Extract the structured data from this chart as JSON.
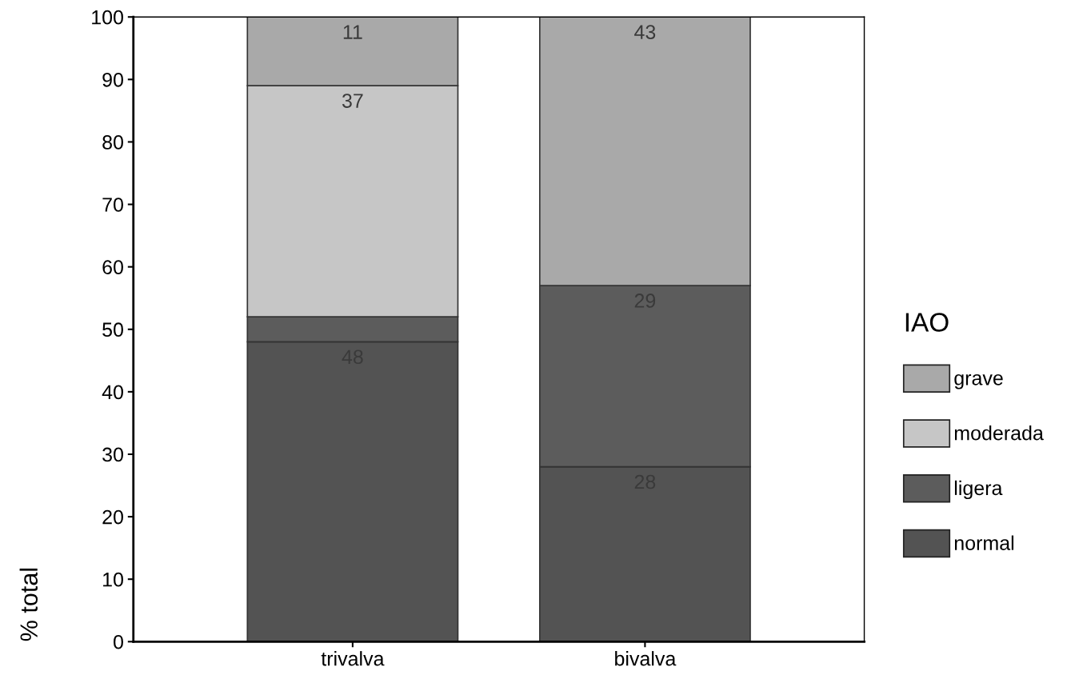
{
  "chart_data": {
    "type": "bar",
    "stacked": true,
    "ylabel": "% total",
    "legend_title": "IAO",
    "legend": "right",
    "categories": [
      "trivalva",
      "bivalva"
    ],
    "series": [
      {
        "name": "normal",
        "color": "#535353",
        "values": [
          48,
          28
        ],
        "value_labels": [
          "48",
          "28"
        ]
      },
      {
        "name": "ligera",
        "color": "#5c5c5c",
        "values": [
          4,
          29
        ],
        "value_labels": [
          null,
          "29"
        ]
      },
      {
        "name": "moderada",
        "color": "#c6c6c6",
        "values": [
          37,
          0
        ],
        "value_labels": [
          "37",
          null
        ]
      },
      {
        "name": "grave",
        "color": "#a9a9a9",
        "values": [
          11,
          43
        ],
        "value_labels": [
          "11",
          "43"
        ]
      }
    ],
    "ylim": [
      0,
      100
    ],
    "yticks": [
      0,
      10,
      20,
      30,
      40,
      50,
      60,
      70,
      80,
      90,
      100
    ],
    "grid": false
  }
}
